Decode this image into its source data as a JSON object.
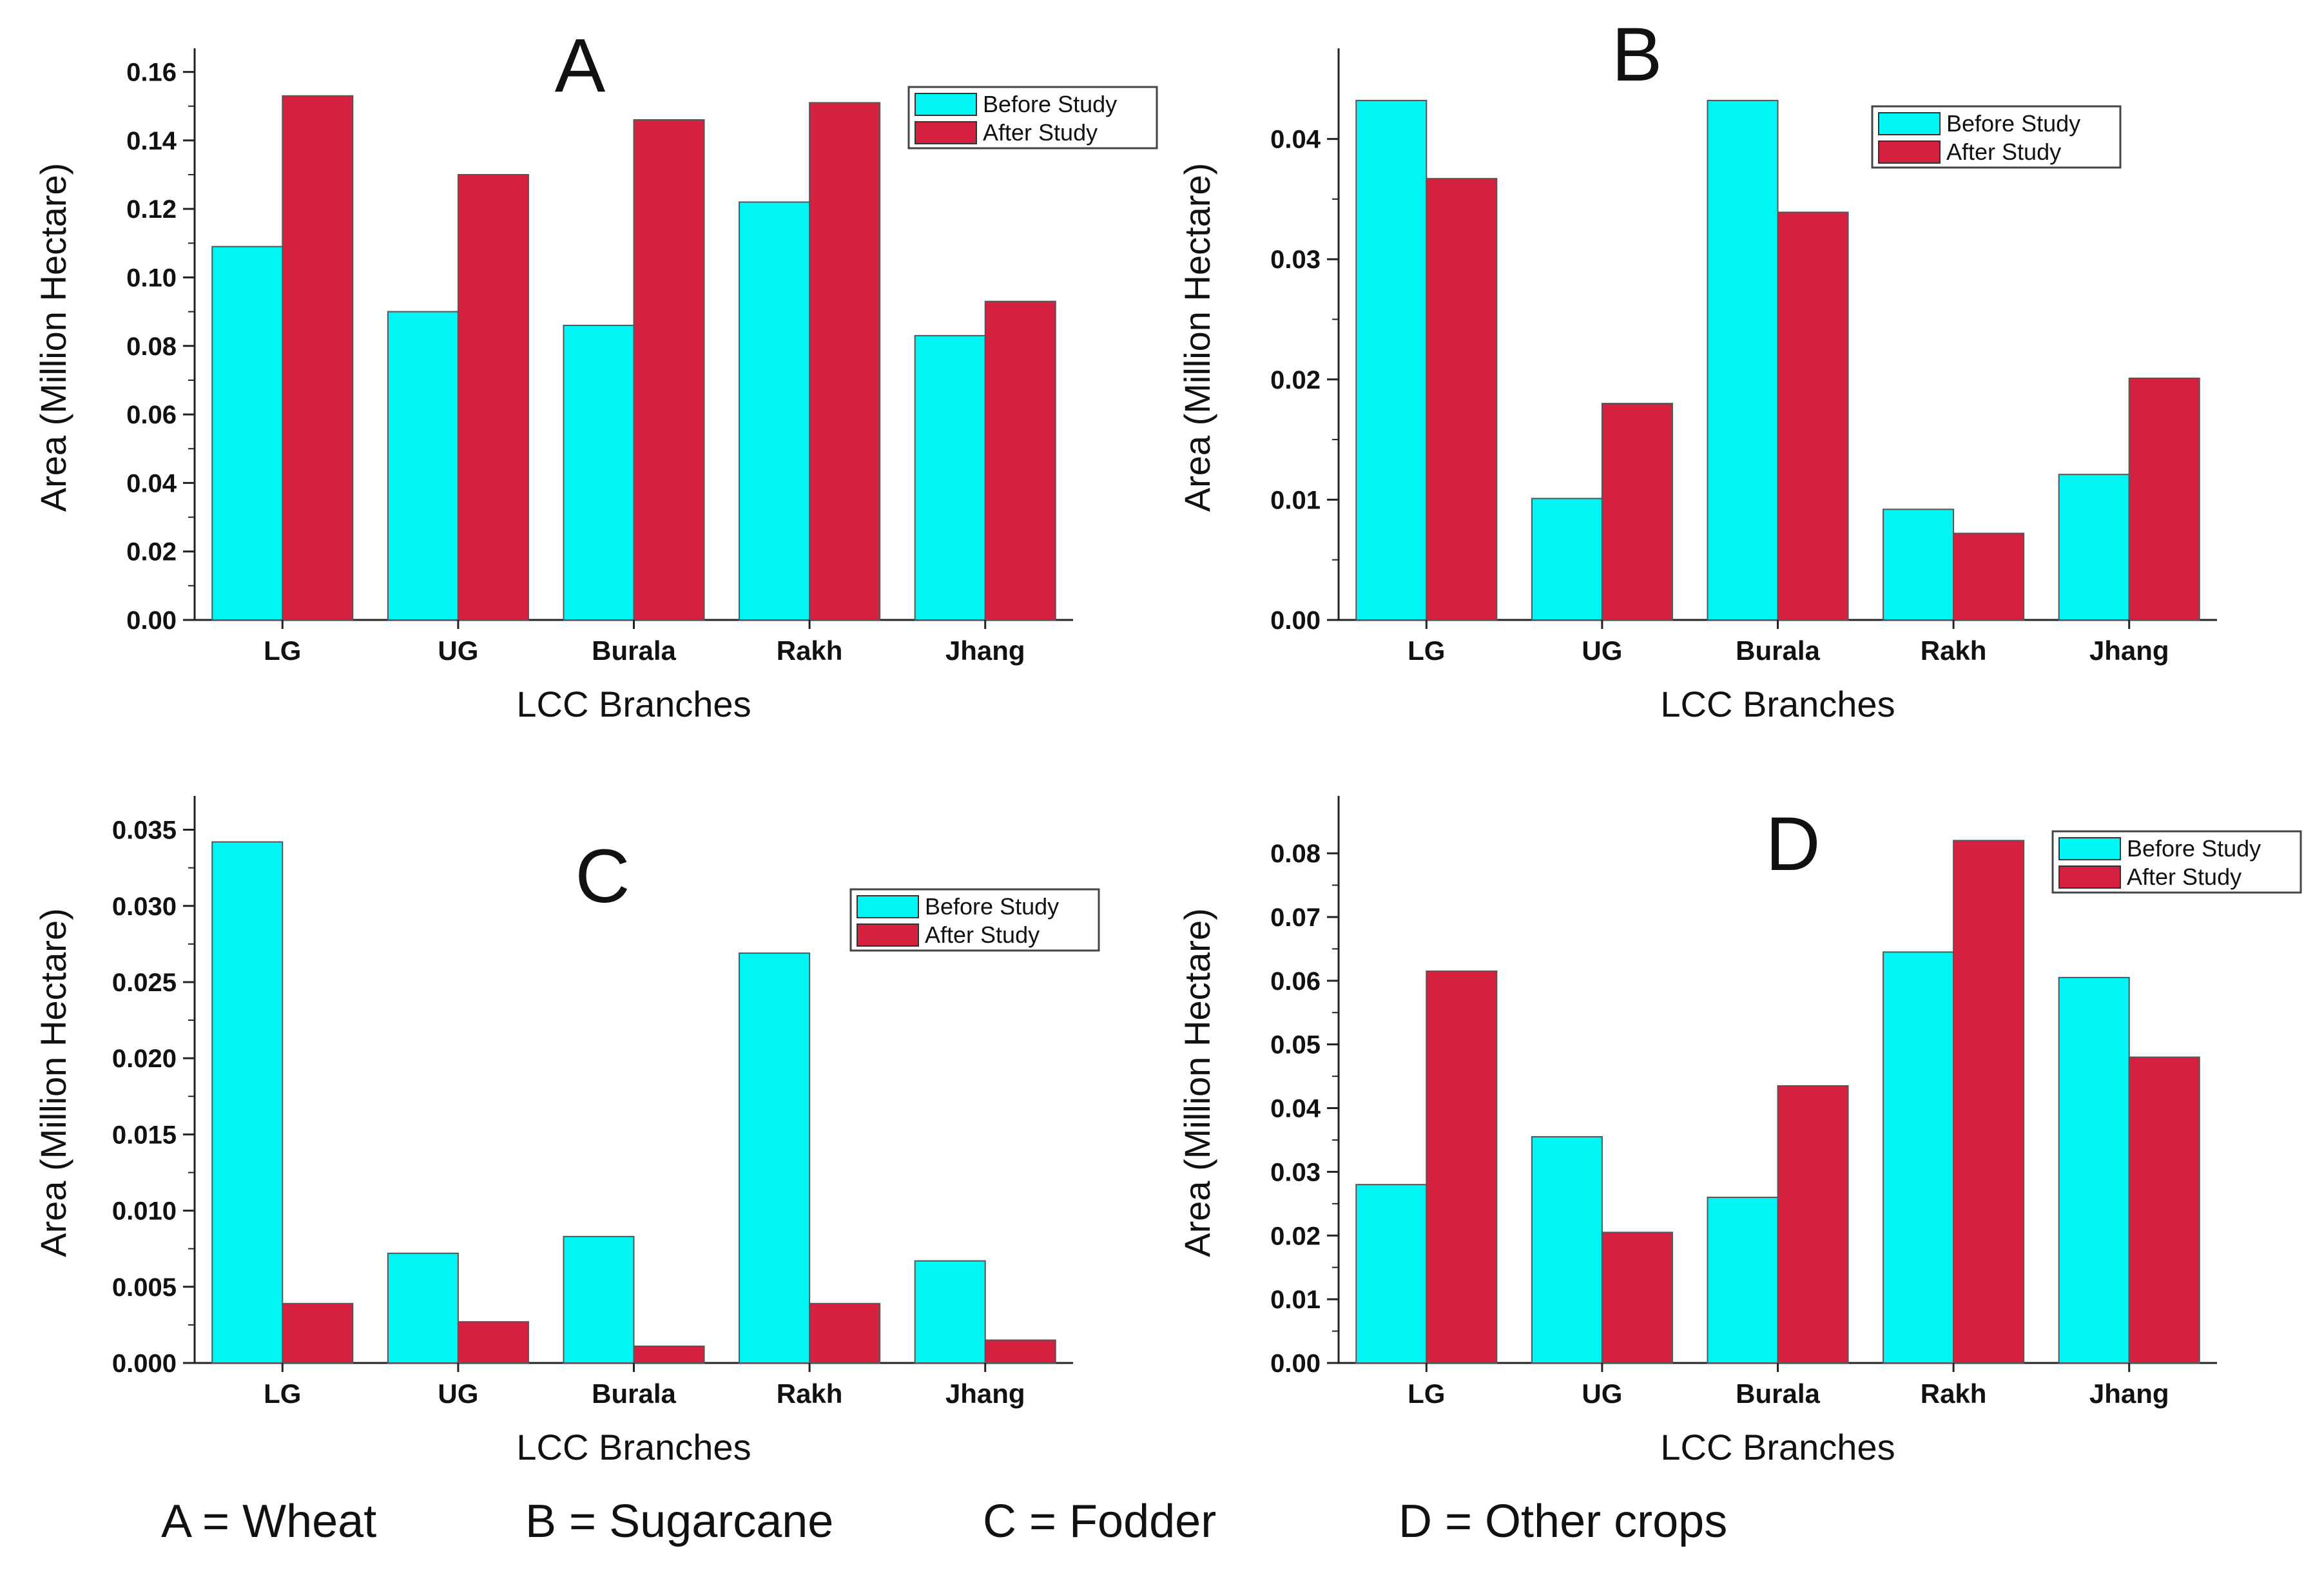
{
  "colors": {
    "before": "#00f5f5",
    "after": "#d5203f",
    "axis": "#222222",
    "bar_edge": "#555555"
  },
  "chart_data": [
    {
      "type": "bar",
      "panel_label": "A",
      "title": "",
      "xlabel": "LCC Branches",
      "ylabel": "Area (Million Hectare)",
      "categories": [
        "LG",
        "UG",
        "Burala",
        "Rakh",
        "Jhang"
      ],
      "ylim": [
        0,
        0.165
      ],
      "yticks": [
        0.0,
        0.02,
        0.04,
        0.06,
        0.08,
        0.1,
        0.12,
        0.14,
        0.16
      ],
      "ytick_labels": [
        "0.00",
        "0.02",
        "0.04",
        "0.06",
        "0.08",
        "0.10",
        "0.12",
        "0.14",
        "0.16"
      ],
      "legend_position": "top-right",
      "series": [
        {
          "name": "Before Study",
          "values": [
            0.109,
            0.09,
            0.086,
            0.122,
            0.083
          ]
        },
        {
          "name": "After Study",
          "values": [
            0.153,
            0.13,
            0.146,
            0.151,
            0.093
          ]
        }
      ]
    },
    {
      "type": "bar",
      "panel_label": "B",
      "title": "",
      "xlabel": "LCC Branches",
      "ylabel": "Area (Million Hectare)",
      "categories": [
        "LG",
        "UG",
        "Burala",
        "Rakh",
        "Jhang"
      ],
      "ylim": [
        0,
        0.047
      ],
      "yticks": [
        0.0,
        0.01,
        0.02,
        0.03,
        0.04
      ],
      "ytick_labels": [
        "0.00",
        "0.01",
        "0.02",
        "0.03",
        "0.04"
      ],
      "legend_position": "top-right",
      "series": [
        {
          "name": "Before Study",
          "values": [
            0.0432,
            0.0101,
            0.0432,
            0.0092,
            0.0121
          ]
        },
        {
          "name": "After Study",
          "values": [
            0.0367,
            0.018,
            0.0339,
            0.0072,
            0.0201
          ]
        }
      ]
    },
    {
      "type": "bar",
      "panel_label": "C",
      "title": "",
      "xlabel": "LCC Branches",
      "ylabel": "Area (Million Hectare)",
      "categories": [
        "LG",
        "UG",
        "Burala",
        "Rakh",
        "Jhang"
      ],
      "ylim": [
        0,
        0.0368
      ],
      "yticks": [
        0.0,
        0.005,
        0.01,
        0.015,
        0.02,
        0.025,
        0.03,
        0.035
      ],
      "ytick_labels": [
        "0.000",
        "0.005",
        "0.010",
        "0.015",
        "0.020",
        "0.025",
        "0.030",
        "0.035"
      ],
      "legend_position": "top-right",
      "series": [
        {
          "name": "Before Study",
          "values": [
            0.0342,
            0.0072,
            0.0083,
            0.0269,
            0.0067
          ]
        },
        {
          "name": "After Study",
          "values": [
            0.0039,
            0.0027,
            0.0011,
            0.0039,
            0.0015
          ]
        }
      ]
    },
    {
      "type": "bar",
      "panel_label": "D",
      "title": "",
      "xlabel": "LCC Branches",
      "ylabel": "Area (Million Hectare)",
      "categories": [
        "LG",
        "UG",
        "Burala",
        "Rakh",
        "Jhang"
      ],
      "ylim": [
        0,
        0.088
      ],
      "yticks": [
        0.0,
        0.01,
        0.02,
        0.03,
        0.04,
        0.05,
        0.06,
        0.07,
        0.08
      ],
      "ytick_labels": [
        "0.00",
        "0.01",
        "0.02",
        "0.03",
        "0.04",
        "0.05",
        "0.06",
        "0.07",
        "0.08"
      ],
      "legend_position": "top-right",
      "series": [
        {
          "name": "Before Study",
          "values": [
            0.028,
            0.0355,
            0.026,
            0.0645,
            0.0605
          ]
        },
        {
          "name": "After Study",
          "values": [
            0.0615,
            0.0205,
            0.0435,
            0.082,
            0.048
          ]
        }
      ]
    }
  ],
  "caption": {
    "items": [
      "A = Wheat",
      "B = Sugarcane",
      "C = Fodder",
      "D = Other crops"
    ]
  }
}
